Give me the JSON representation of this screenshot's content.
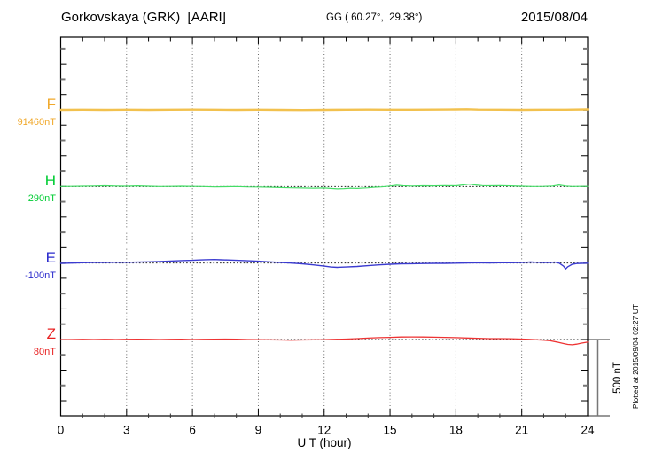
{
  "header": {
    "station": "Gorkovskaya (GRK)  [AARI]",
    "coords": "GG ( 60.27°,  29.38°)",
    "date": "2015/08/04"
  },
  "footer": {
    "plotted_at": "Plotted at 2015/09/04 02:27 UT"
  },
  "scalebar": {
    "label": "500 nT",
    "value_nT": 500
  },
  "chart_data": {
    "type": "line",
    "title": "Gorkovskaya (GRK)  [AARI]",
    "xlabel": "U T (hour)",
    "x_range": [
      0,
      24
    ],
    "x_major_tick_hours": 3,
    "x_minor_tick_hours": 1,
    "x_tick_labels": [
      "0",
      "3",
      "6",
      "9",
      "12",
      "15",
      "18",
      "21",
      "24"
    ],
    "grid": "vertical dotted lines every 3 hours; dotted horizontal baseline per component",
    "legend_position": "left margin, one colored label per trace",
    "y_scale": "500 nT per component spacing (scale bar at right)",
    "series": [
      {
        "name": "F",
        "base_label": "91460nT",
        "base_value_nT": 91460,
        "label_color": "#F0A82A",
        "trace_color": "#F2C14E",
        "points_hour_offset_nT": [
          [
            0,
            0
          ],
          [
            1,
            1
          ],
          [
            2,
            0
          ],
          [
            3,
            1
          ],
          [
            4,
            0
          ],
          [
            5,
            1
          ],
          [
            6,
            2
          ],
          [
            7,
            1
          ],
          [
            8,
            0
          ],
          [
            9,
            1
          ],
          [
            10,
            0
          ],
          [
            11,
            -1
          ],
          [
            12,
            0
          ],
          [
            13,
            1
          ],
          [
            14,
            2
          ],
          [
            15,
            1
          ],
          [
            16,
            1
          ],
          [
            17,
            2
          ],
          [
            18,
            3
          ],
          [
            18.5,
            4
          ],
          [
            19,
            2
          ],
          [
            20,
            1
          ],
          [
            21,
            0
          ],
          [
            22,
            1
          ],
          [
            23,
            1
          ],
          [
            24,
            3
          ]
        ]
      },
      {
        "name": "H",
        "base_label": "290nT",
        "base_value_nT": 290,
        "label_color": "#00CC33",
        "trace_color": "#44DD66",
        "points_hour_offset_nT": [
          [
            0,
            0
          ],
          [
            0.5,
            1
          ],
          [
            1,
            2
          ],
          [
            1.5,
            3
          ],
          [
            2,
            5
          ],
          [
            2.5,
            3
          ],
          [
            3,
            2
          ],
          [
            3.5,
            4
          ],
          [
            4,
            2
          ],
          [
            4.5,
            0
          ],
          [
            5,
            1
          ],
          [
            5.5,
            2
          ],
          [
            6,
            1
          ],
          [
            6.5,
            0
          ],
          [
            7,
            -2
          ],
          [
            7.5,
            -1
          ],
          [
            8,
            0
          ],
          [
            8.5,
            -2
          ],
          [
            9,
            -3
          ],
          [
            9.5,
            -4
          ],
          [
            10,
            -6
          ],
          [
            10.5,
            -8
          ],
          [
            11,
            -9
          ],
          [
            11.5,
            -10
          ],
          [
            12,
            -9
          ],
          [
            12.3,
            -12
          ],
          [
            12.6,
            -15
          ],
          [
            12.9,
            -13
          ],
          [
            13.2,
            -10
          ],
          [
            13.5,
            -12
          ],
          [
            14,
            -8
          ],
          [
            14.3,
            -4
          ],
          [
            14.6,
            -2
          ],
          [
            15,
            3
          ],
          [
            15.3,
            8
          ],
          [
            15.6,
            5
          ],
          [
            16,
            3
          ],
          [
            16.5,
            5
          ],
          [
            17,
            4
          ],
          [
            17.5,
            6
          ],
          [
            18,
            5
          ],
          [
            18.3,
            10
          ],
          [
            18.6,
            16
          ],
          [
            18.9,
            10
          ],
          [
            19.2,
            6
          ],
          [
            19.5,
            5
          ],
          [
            20,
            6
          ],
          [
            20.5,
            4
          ],
          [
            21,
            2
          ],
          [
            21.5,
            0
          ],
          [
            22,
            1
          ],
          [
            22.4,
            3
          ],
          [
            22.7,
            10
          ],
          [
            23,
            3
          ],
          [
            23.3,
            0
          ],
          [
            23.6,
            1
          ],
          [
            24,
            1
          ]
        ]
      },
      {
        "name": "E",
        "base_label": "-100nT",
        "base_value_nT": -100,
        "label_color": "#2A2ACC",
        "trace_color": "#3B3BD0",
        "points_hour_offset_nT": [
          [
            0,
            -2
          ],
          [
            0.5,
            0
          ],
          [
            1,
            2
          ],
          [
            1.5,
            3
          ],
          [
            2,
            4
          ],
          [
            2.5,
            5
          ],
          [
            3,
            5
          ],
          [
            3.5,
            6
          ],
          [
            4,
            8
          ],
          [
            4.5,
            10
          ],
          [
            5,
            13
          ],
          [
            5.5,
            16
          ],
          [
            6,
            18
          ],
          [
            6.3,
            20
          ],
          [
            6.6,
            22
          ],
          [
            7,
            23
          ],
          [
            7.3,
            21
          ],
          [
            7.6,
            20
          ],
          [
            8,
            18
          ],
          [
            8.5,
            15
          ],
          [
            9,
            12
          ],
          [
            9.5,
            8
          ],
          [
            10,
            4
          ],
          [
            10.5,
            0
          ],
          [
            11,
            -5
          ],
          [
            11.5,
            -12
          ],
          [
            12,
            -20
          ],
          [
            12.3,
            -26
          ],
          [
            12.6,
            -28
          ],
          [
            13,
            -26
          ],
          [
            13.5,
            -22
          ],
          [
            14,
            -17
          ],
          [
            14.5,
            -12
          ],
          [
            15,
            -8
          ],
          [
            15.5,
            -5
          ],
          [
            16,
            -4
          ],
          [
            16.5,
            -3
          ],
          [
            17,
            -2
          ],
          [
            17.5,
            -2
          ],
          [
            18,
            -1
          ],
          [
            18.5,
            1
          ],
          [
            19,
            2
          ],
          [
            19.5,
            1
          ],
          [
            20,
            2
          ],
          [
            20.5,
            2
          ],
          [
            21,
            3
          ],
          [
            21.4,
            7
          ],
          [
            21.7,
            5
          ],
          [
            22,
            3
          ],
          [
            22.3,
            4
          ],
          [
            22.5,
            6
          ],
          [
            22.7,
            0
          ],
          [
            22.9,
            -20
          ],
          [
            23,
            -38
          ],
          [
            23.1,
            -24
          ],
          [
            23.3,
            -8
          ],
          [
            23.5,
            -3
          ],
          [
            23.7,
            -2
          ],
          [
            24,
            -1
          ]
        ]
      },
      {
        "name": "Z",
        "base_label": "80nT",
        "base_value_nT": 80,
        "label_color": "#E82222",
        "trace_color": "#EE3333",
        "points_hour_offset_nT": [
          [
            0,
            -1
          ],
          [
            0.5,
            0
          ],
          [
            1,
            1
          ],
          [
            1.5,
            0
          ],
          [
            2,
            1
          ],
          [
            2.5,
            0
          ],
          [
            3,
            1
          ],
          [
            3.5,
            2
          ],
          [
            4,
            1
          ],
          [
            4.5,
            0
          ],
          [
            5,
            1
          ],
          [
            5.5,
            2
          ],
          [
            6,
            0
          ],
          [
            6.5,
            1
          ],
          [
            7,
            2
          ],
          [
            7.5,
            3
          ],
          [
            8,
            2
          ],
          [
            8.5,
            0
          ],
          [
            9,
            -1
          ],
          [
            9.5,
            -2
          ],
          [
            10,
            -3
          ],
          [
            10.5,
            -4
          ],
          [
            11,
            -3
          ],
          [
            11.5,
            -2
          ],
          [
            12,
            -1
          ],
          [
            12.5,
            1
          ],
          [
            13,
            3
          ],
          [
            13.5,
            6
          ],
          [
            14,
            9
          ],
          [
            14.5,
            12
          ],
          [
            15,
            14
          ],
          [
            15.5,
            16
          ],
          [
            16,
            17
          ],
          [
            16.5,
            16
          ],
          [
            17,
            15
          ],
          [
            17.5,
            14
          ],
          [
            18,
            12
          ],
          [
            18.5,
            10
          ],
          [
            19,
            8
          ],
          [
            19.5,
            6
          ],
          [
            20,
            6
          ],
          [
            20.5,
            5
          ],
          [
            21,
            3
          ],
          [
            21.3,
            1
          ],
          [
            21.6,
            -1
          ],
          [
            22,
            -4
          ],
          [
            22.3,
            -8
          ],
          [
            22.6,
            -16
          ],
          [
            22.9,
            -26
          ],
          [
            23.1,
            -32
          ],
          [
            23.3,
            -34
          ],
          [
            23.5,
            -30
          ],
          [
            23.7,
            -24
          ],
          [
            24,
            -17
          ]
        ]
      }
    ]
  }
}
